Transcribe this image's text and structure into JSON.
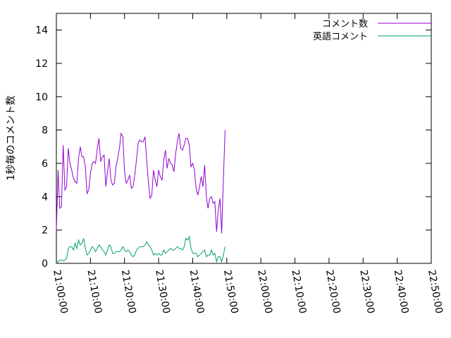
{
  "chart_data": {
    "type": "line",
    "ylabel": "1秒毎のコメント数",
    "ylim": [
      0,
      15
    ],
    "y_ticks": [
      "0",
      "2",
      "4",
      "6",
      "8",
      "10",
      "12",
      "14"
    ],
    "x_range_seconds": [
      75600,
      82200
    ],
    "x_ticks": [
      "21:00:00",
      "21:10:00",
      "21:20:00",
      "21:30:00",
      "21:40:00",
      "21:50:00",
      "22:00:00",
      "22:10:00",
      "22:20:00",
      "22:30:00",
      "22:40:00",
      "22:50:00"
    ],
    "x_step_seconds": 30,
    "grid": false,
    "legend_position": "top-right",
    "series": [
      {
        "name": "コメント数",
        "color": "#9400d3",
        "values": [
          2.0,
          5.6,
          3.3,
          3.4,
          7.1,
          4.4,
          4.6,
          6.9,
          6.0,
          5.6,
          5.1,
          4.9,
          4.8,
          6.3,
          7.0,
          6.4,
          6.4,
          5.8,
          4.2,
          4.4,
          5.4,
          6.0,
          6.1,
          6.0,
          6.9,
          7.5,
          6.1,
          6.4,
          6.5,
          4.6,
          5.5,
          6.3,
          5.0,
          4.7,
          4.8,
          5.8,
          6.3,
          6.9,
          7.8,
          7.6,
          5.5,
          4.8,
          5.0,
          5.3,
          4.5,
          4.6,
          5.3,
          6.2,
          7.2,
          7.4,
          7.3,
          7.3,
          7.6,
          6.2,
          4.9,
          3.9,
          4.1,
          5.6,
          5.0,
          4.6,
          5.6,
          5.2,
          5.0,
          6.2,
          6.8,
          5.7,
          6.3,
          6.0,
          5.9,
          5.5,
          6.6,
          7.3,
          7.8,
          6.9,
          6.8,
          7.1,
          7.5,
          7.5,
          7.1,
          5.8,
          6.0,
          5.6,
          4.5,
          4.1,
          4.6,
          5.2,
          4.6,
          5.9,
          4.0,
          3.3,
          3.9,
          4.0,
          3.6,
          3.7,
          1.9,
          3.2,
          3.9,
          1.8,
          5.0,
          8.0
        ]
      },
      {
        "name": "英語コメント",
        "color": "#009e73",
        "values": [
          0.0,
          0.1,
          0.2,
          0.2,
          0.15,
          0.2,
          0.3,
          0.9,
          1.0,
          1.0,
          0.8,
          1.2,
          0.9,
          1.4,
          1.1,
          1.2,
          1.5,
          0.9,
          0.5,
          0.6,
          0.8,
          1.0,
          0.9,
          0.7,
          0.9,
          1.1,
          1.0,
          0.8,
          0.7,
          0.5,
          0.8,
          1.1,
          1.0,
          0.6,
          0.6,
          0.7,
          0.7,
          0.7,
          0.8,
          1.0,
          0.8,
          0.7,
          0.8,
          0.7,
          0.5,
          0.4,
          0.5,
          0.8,
          0.9,
          1.0,
          1.0,
          1.0,
          1.1,
          1.3,
          1.1,
          1.0,
          0.8,
          0.5,
          0.6,
          0.5,
          0.6,
          0.5,
          0.5,
          0.8,
          0.6,
          0.7,
          0.8,
          0.9,
          0.8,
          0.8,
          0.9,
          1.0,
          0.9,
          0.9,
          0.8,
          1.0,
          1.5,
          1.4,
          1.6,
          0.9,
          0.6,
          0.6,
          0.6,
          0.4,
          0.5,
          0.6,
          0.7,
          0.8,
          0.4,
          0.5,
          0.5,
          0.8,
          0.5,
          0.6,
          0.1,
          0.4,
          0.4,
          0.1,
          0.5,
          1.0
        ]
      }
    ]
  }
}
